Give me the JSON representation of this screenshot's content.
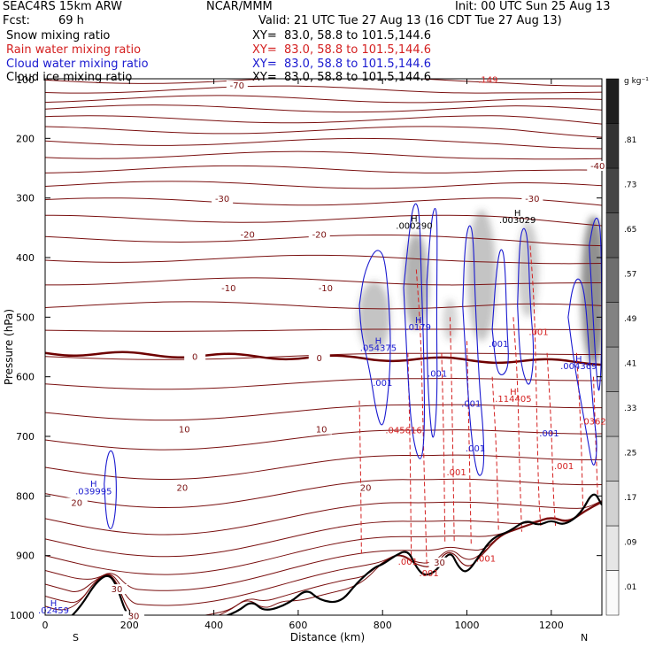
{
  "header": {
    "model": "SEAC4RS 15km ARW",
    "org": "NCAR/MMM",
    "init": "Init: 00 UTC Sun 25 Aug 13",
    "fcst_label": "Fcst:",
    "fcst_value": "69 h",
    "valid": "Valid: 21 UTC Tue 27 Aug 13 (16 CDT Tue 27 Aug 13)"
  },
  "legend": [
    {
      "name": "Snow mixing ratio",
      "xy": "XY=  83.0, 58.8 to 101.5,144.6",
      "color": "#000000"
    },
    {
      "name": "Rain water mixing ratio",
      "xy": "XY=  83.0, 58.8 to 101.5,144.6",
      "color": "#d42020"
    },
    {
      "name": "Cloud water mixing ratio",
      "xy": "XY=  83.0, 58.8 to 101.5,144.6",
      "color": "#1a1ad0"
    },
    {
      "name": "Cloud ice mixing ratio",
      "xy": "XY=  83.0, 58.8 to 101.5,144.6",
      "color": "#000000"
    }
  ],
  "chart_data": {
    "type": "contour",
    "xlabel": "Distance (km)",
    "ylabel": "Pressure (hPa)",
    "xlim": [
      0,
      1320
    ],
    "ylim": [
      1000,
      100
    ],
    "x_ticks": [
      0,
      200,
      400,
      600,
      800,
      1000,
      1200
    ],
    "y_ticks": [
      200,
      300,
      400,
      500,
      600,
      700,
      800,
      900,
      1000
    ],
    "x_ticks_labels": [
      "0",
      "200",
      "400",
      "600",
      "800",
      "1000",
      "1200"
    ],
    "y_ticks_labels": [
      "200",
      "300",
      "400",
      "500",
      "600",
      "700",
      "800",
      "900",
      "1000"
    ],
    "extra_y_label": "100",
    "endpoints": {
      "left": "S",
      "right": "N"
    },
    "colorbar": {
      "unit": "g kg⁻¹",
      "levels": [
        ".01",
        ".09",
        ".17",
        ".25",
        ".33",
        ".41",
        ".49",
        ".57",
        ".65",
        ".73",
        ".81"
      ]
    },
    "temperature_labels": [
      {
        "text": "-70",
        "x": 455,
        "p": 115
      },
      {
        "text": "-40",
        "x": 1310,
        "p": 250
      },
      {
        "text": "-30",
        "x": 420,
        "p": 305
      },
      {
        "text": "-30",
        "x": 1155,
        "p": 305
      },
      {
        "text": "-20",
        "x": 480,
        "p": 365
      },
      {
        "text": "-20",
        "x": 650,
        "p": 365
      },
      {
        "text": "-10",
        "x": 435,
        "p": 455
      },
      {
        "text": "-10",
        "x": 665,
        "p": 455
      },
      {
        "text": "0",
        "x": 355,
        "p": 570
      },
      {
        "text": "0",
        "x": 650,
        "p": 572
      },
      {
        "text": "10",
        "x": 330,
        "p": 692
      },
      {
        "text": "10",
        "x": 655,
        "p": 692
      },
      {
        "text": "20",
        "x": 325,
        "p": 790
      },
      {
        "text": "20",
        "x": 760,
        "p": 790
      },
      {
        "text": "20",
        "x": 75,
        "p": 815
      },
      {
        "text": "30",
        "x": 170,
        "p": 960
      },
      {
        "text": "30",
        "x": 210,
        "p": 1005
      },
      {
        "text": "30",
        "x": 935,
        "p": 915
      }
    ],
    "annotations": [
      {
        "text": "H",
        "x": 875,
        "p": 340,
        "color": "#000000"
      },
      {
        "text": ".000290",
        "x": 875,
        "p": 352,
        "color": "#000000"
      },
      {
        "text": "H",
        "x": 1120,
        "p": 330,
        "color": "#000000"
      },
      {
        "text": ".003029",
        "x": 1120,
        "p": 342,
        "color": "#000000"
      },
      {
        "text": "H",
        "x": 790,
        "p": 545,
        "color": "#1a1ad0"
      },
      {
        "text": ".054375",
        "x": 790,
        "p": 557,
        "color": "#1a1ad0"
      },
      {
        "text": "H",
        "x": 885,
        "p": 510,
        "color": "#1a1ad0"
      },
      {
        "text": ".0179",
        "x": 885,
        "p": 522,
        "color": "#1a1ad0"
      },
      {
        "text": ".001",
        "x": 800,
        "p": 615,
        "color": "#1a1ad0"
      },
      {
        "text": ".001",
        "x": 930,
        "p": 600,
        "color": "#1a1ad0"
      },
      {
        "text": ".001",
        "x": 1010,
        "p": 650,
        "color": "#1a1ad0"
      },
      {
        "text": ".001",
        "x": 1075,
        "p": 550,
        "color": "#1a1ad0"
      },
      {
        "text": ".001",
        "x": 1020,
        "p": 725,
        "color": "#1a1ad0"
      },
      {
        "text": ".001",
        "x": 1195,
        "p": 700,
        "color": "#1a1ad0"
      },
      {
        "text": "H",
        "x": 1265,
        "p": 575,
        "color": "#1a1ad0"
      },
      {
        "text": ".004369",
        "x": 1265,
        "p": 587,
        "color": "#1a1ad0"
      },
      {
        "text": "H",
        "x": 115,
        "p": 785,
        "color": "#1a1ad0"
      },
      {
        "text": ".039995",
        "x": 115,
        "p": 797,
        "color": "#1a1ad0"
      },
      {
        "text": "H",
        "x": 20,
        "p": 985,
        "color": "#1a1ad0"
      },
      {
        "text": ".02459",
        "x": 20,
        "p": 997,
        "color": "#1a1ad0"
      },
      {
        "text": ".001",
        "x": 1170,
        "p": 530,
        "color": "#d42020"
      },
      {
        "text": "H",
        "x": 1110,
        "p": 630,
        "color": "#d42020"
      },
      {
        "text": ".114405",
        "x": 1110,
        "p": 642,
        "color": "#d42020"
      },
      {
        "text": ".045616",
        "x": 850,
        "p": 695,
        "color": "#d42020"
      },
      {
        "text": ".001",
        "x": 975,
        "p": 765,
        "color": "#d42020"
      },
      {
        "text": ".001",
        "x": 1230,
        "p": 755,
        "color": "#d42020"
      },
      {
        "text": ".001",
        "x": 860,
        "p": 915,
        "color": "#d42020"
      },
      {
        "text": ".001",
        "x": 910,
        "p": 935,
        "color": "#d42020"
      },
      {
        "text": ".001",
        "x": 1045,
        "p": 910,
        "color": "#d42020"
      },
      {
        "text": ".0362",
        "x": 1300,
        "p": 680,
        "color": "#d42020"
      },
      {
        "text": ".149",
        "x": 1050,
        "p": 107,
        "color": "#d42020"
      }
    ]
  },
  "colors": {
    "temperature": "#7a1010",
    "freezing": "#6e0000",
    "terrain": "#000000",
    "rain": "#d42020",
    "cloud": "#1a1ad0"
  }
}
